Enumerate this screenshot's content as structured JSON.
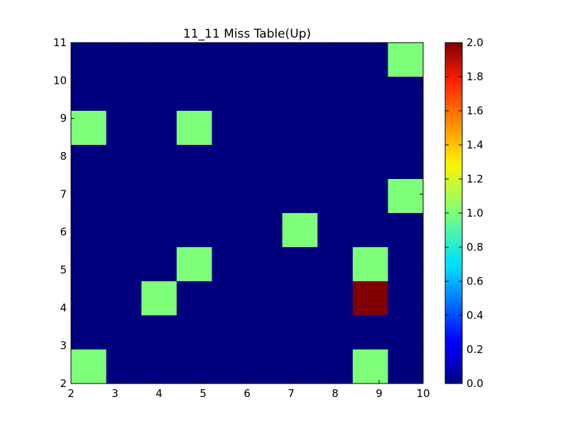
{
  "chart_data": {
    "type": "heatmap",
    "title": "11_11 Miss Table(Up)",
    "xlabel": "",
    "ylabel": "",
    "xlim": [
      2,
      10
    ],
    "ylim": [
      2,
      11
    ],
    "x_ticks": [
      "2",
      "3",
      "4",
      "5",
      "6",
      "7",
      "8",
      "9",
      "10"
    ],
    "y_ticks": [
      "2",
      "3",
      "4",
      "5",
      "6",
      "7",
      "8",
      "9",
      "10",
      "11"
    ],
    "grid_cols": 10,
    "grid_rows": 10,
    "cells": [
      {
        "col": 9,
        "row": 0,
        "value": 1
      },
      {
        "col": 0,
        "row": 2,
        "value": 1
      },
      {
        "col": 3,
        "row": 2,
        "value": 1
      },
      {
        "col": 9,
        "row": 4,
        "value": 1
      },
      {
        "col": 6,
        "row": 5,
        "value": 1
      },
      {
        "col": 3,
        "row": 6,
        "value": 1
      },
      {
        "col": 8,
        "row": 6,
        "value": 1
      },
      {
        "col": 2,
        "row": 7,
        "value": 1
      },
      {
        "col": 8,
        "row": 7,
        "value": 2
      },
      {
        "col": 0,
        "row": 9,
        "value": 1
      },
      {
        "col": 8,
        "row": 9,
        "value": 1
      }
    ],
    "default_value": 0,
    "colorbar": {
      "min": 0,
      "max": 2,
      "ticks": [
        "0.0",
        "0.2",
        "0.4",
        "0.6",
        "0.8",
        "1.0",
        "1.2",
        "1.4",
        "1.6",
        "1.8",
        "2.0"
      ]
    },
    "colormap": "jet",
    "colors": {
      "zero": "#00007f",
      "one": "#7dff7a",
      "two": "#7f0000"
    }
  }
}
